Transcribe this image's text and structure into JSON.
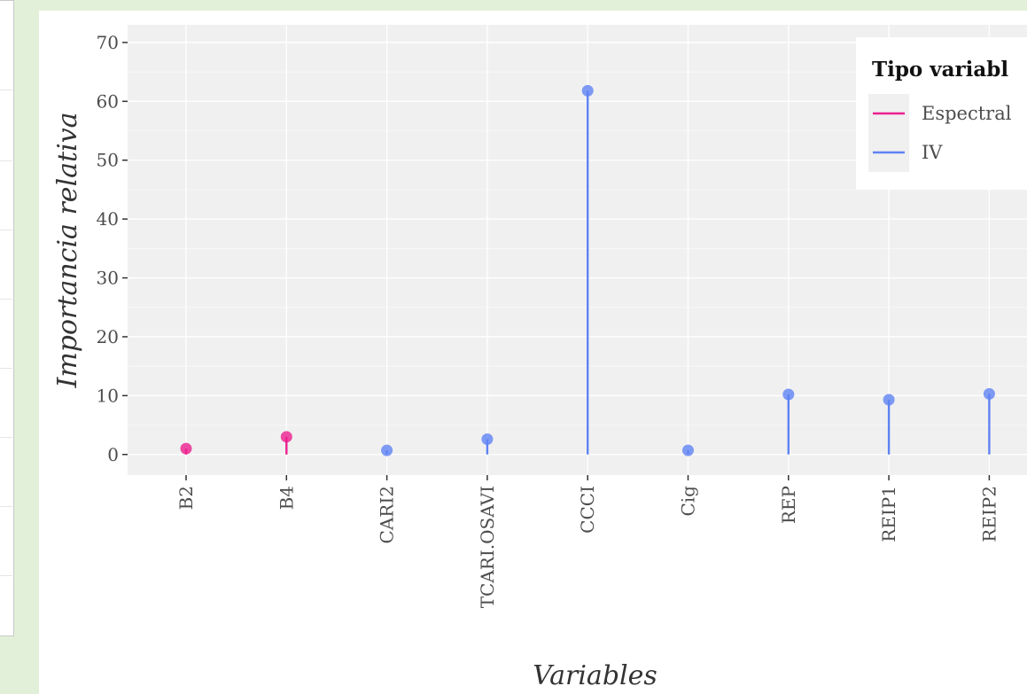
{
  "chart_data": {
    "type": "lollipop",
    "title": "",
    "xlabel": "Variables",
    "ylabel": "Importancia relativa",
    "ylim": [
      -3.5,
      73
    ],
    "yticks": [
      0,
      10,
      20,
      30,
      40,
      50,
      60,
      70
    ],
    "grid": true,
    "legend": {
      "title": "Tipo variabl",
      "placement": "top-right",
      "entries": [
        {
          "label": "Espectral",
          "color": "#ec1f8f"
        },
        {
          "label": "IV",
          "color": "#5f83f4"
        }
      ]
    },
    "categories": [
      "B2",
      "B4",
      "CARI2",
      "TCARI.OSAVI",
      "CCCI",
      "Cig",
      "REP",
      "REIP1",
      "REIP2"
    ],
    "points": [
      {
        "x": "B2",
        "y": 1.0,
        "type": "Espectral"
      },
      {
        "x": "B4",
        "y": 3.0,
        "type": "Espectral"
      },
      {
        "x": "CARI2",
        "y": 0.7,
        "type": "IV"
      },
      {
        "x": "TCARI.OSAVI",
        "y": 2.6,
        "type": "IV"
      },
      {
        "x": "CCCI",
        "y": 61.8,
        "type": "IV"
      },
      {
        "x": "Cig",
        "y": 0.7,
        "type": "IV"
      },
      {
        "x": "REP",
        "y": 10.2,
        "type": "IV"
      },
      {
        "x": "REIP1",
        "y": 9.3,
        "type": "IV"
      },
      {
        "x": "REIP2",
        "y": 10.3,
        "type": "IV"
      }
    ]
  }
}
